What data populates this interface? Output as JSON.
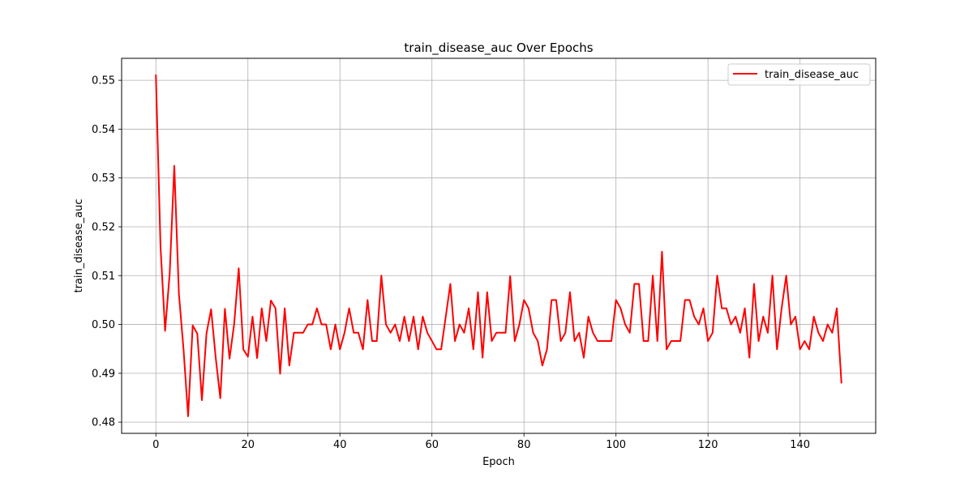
{
  "chart_data": {
    "type": "line",
    "title": "train_disease_auc Over Epochs",
    "xlabel": "Epoch",
    "ylabel": "train_disease_auc",
    "xlim": [
      -7.45,
      156.45
    ],
    "ylim": [
      0.4777,
      0.5545
    ],
    "xticks": [
      0,
      20,
      40,
      60,
      80,
      100,
      120,
      140
    ],
    "yticks": [
      0.48,
      0.49,
      0.5,
      0.51,
      0.52,
      0.53,
      0.54,
      0.55
    ],
    "xtick_labels": [
      "0",
      "20",
      "40",
      "60",
      "80",
      "100",
      "120",
      "140"
    ],
    "ytick_labels": [
      "0.48",
      "0.49",
      "0.50",
      "0.51",
      "0.52",
      "0.53",
      "0.54",
      "0.55"
    ],
    "grid": true,
    "legend_position": "top-right",
    "series": [
      {
        "name": "train_disease_auc",
        "color": "#ff0000",
        "x": [
          0,
          1,
          2,
          3,
          4,
          5,
          6,
          7,
          8,
          9,
          10,
          11,
          12,
          13,
          14,
          15,
          16,
          17,
          18,
          19,
          20,
          21,
          22,
          23,
          24,
          25,
          26,
          27,
          28,
          29,
          30,
          31,
          32,
          33,
          34,
          35,
          36,
          37,
          38,
          39,
          40,
          41,
          42,
          43,
          44,
          45,
          46,
          47,
          48,
          49,
          50,
          51,
          52,
          53,
          54,
          55,
          56,
          57,
          58,
          59,
          60,
          61,
          62,
          63,
          64,
          65,
          66,
          67,
          68,
          69,
          70,
          71,
          72,
          73,
          74,
          75,
          76,
          77,
          78,
          79,
          80,
          81,
          82,
          83,
          84,
          85,
          86,
          87,
          88,
          89,
          90,
          91,
          92,
          93,
          94,
          95,
          96,
          97,
          98,
          99,
          100,
          101,
          102,
          103,
          104,
          105,
          106,
          107,
          108,
          109,
          110,
          111,
          112,
          113,
          114,
          115,
          116,
          117,
          118,
          119,
          120,
          121,
          122,
          123,
          124,
          125,
          126,
          127,
          128,
          129,
          130,
          131,
          132,
          133,
          134,
          135,
          136,
          137,
          138,
          139,
          140,
          141,
          142,
          143,
          144,
          145,
          146,
          147,
          148,
          149
        ],
        "values": [
          0.551,
          0.516,
          0.4987,
          0.5105,
          0.5325,
          0.5063,
          0.495,
          0.4812,
          0.4998,
          0.4981,
          0.4845,
          0.4982,
          0.5031,
          0.4932,
          0.4849,
          0.5032,
          0.493,
          0.5,
          0.5115,
          0.4949,
          0.4934,
          0.5016,
          0.4931,
          0.5033,
          0.4966,
          0.5049,
          0.5033,
          0.4899,
          0.5033,
          0.4916,
          0.4983,
          0.4983,
          0.4983,
          0.5,
          0.5,
          0.5033,
          0.5,
          0.5,
          0.4949,
          0.5,
          0.4949,
          0.4983,
          0.5033,
          0.4983,
          0.4983,
          0.4949,
          0.505,
          0.4966,
          0.4966,
          0.51,
          0.5,
          0.4983,
          0.5,
          0.4966,
          0.5016,
          0.4966,
          0.5016,
          0.4949,
          0.5016,
          0.4983,
          0.4966,
          0.4949,
          0.4949,
          0.5016,
          0.5083,
          0.4966,
          0.5,
          0.4983,
          0.5033,
          0.4949,
          0.5066,
          0.4932,
          0.5066,
          0.4966,
          0.4983,
          0.4983,
          0.4983,
          0.5099,
          0.4966,
          0.5,
          0.505,
          0.5033,
          0.4983,
          0.4966,
          0.4916,
          0.4949,
          0.505,
          0.505,
          0.4966,
          0.4983,
          0.5066,
          0.4966,
          0.4983,
          0.4932,
          0.5016,
          0.4983,
          0.4966,
          0.4966,
          0.4966,
          0.4966,
          0.505,
          0.5033,
          0.5,
          0.4983,
          0.5083,
          0.5083,
          0.4966,
          0.4966,
          0.51,
          0.4966,
          0.5149,
          0.4949,
          0.4966,
          0.4966,
          0.4966,
          0.505,
          0.505,
          0.5016,
          0.5,
          0.5033,
          0.4966,
          0.4983,
          0.51,
          0.5033,
          0.5033,
          0.5,
          0.5016,
          0.4983,
          0.5033,
          0.4932,
          0.5083,
          0.4966,
          0.5016,
          0.4983,
          0.51,
          0.4949,
          0.5033,
          0.51,
          0.5,
          0.5016,
          0.4949,
          0.4966,
          0.4949,
          0.5016,
          0.4983,
          0.4966,
          0.5,
          0.4983,
          0.5033,
          0.4881
        ]
      }
    ]
  }
}
